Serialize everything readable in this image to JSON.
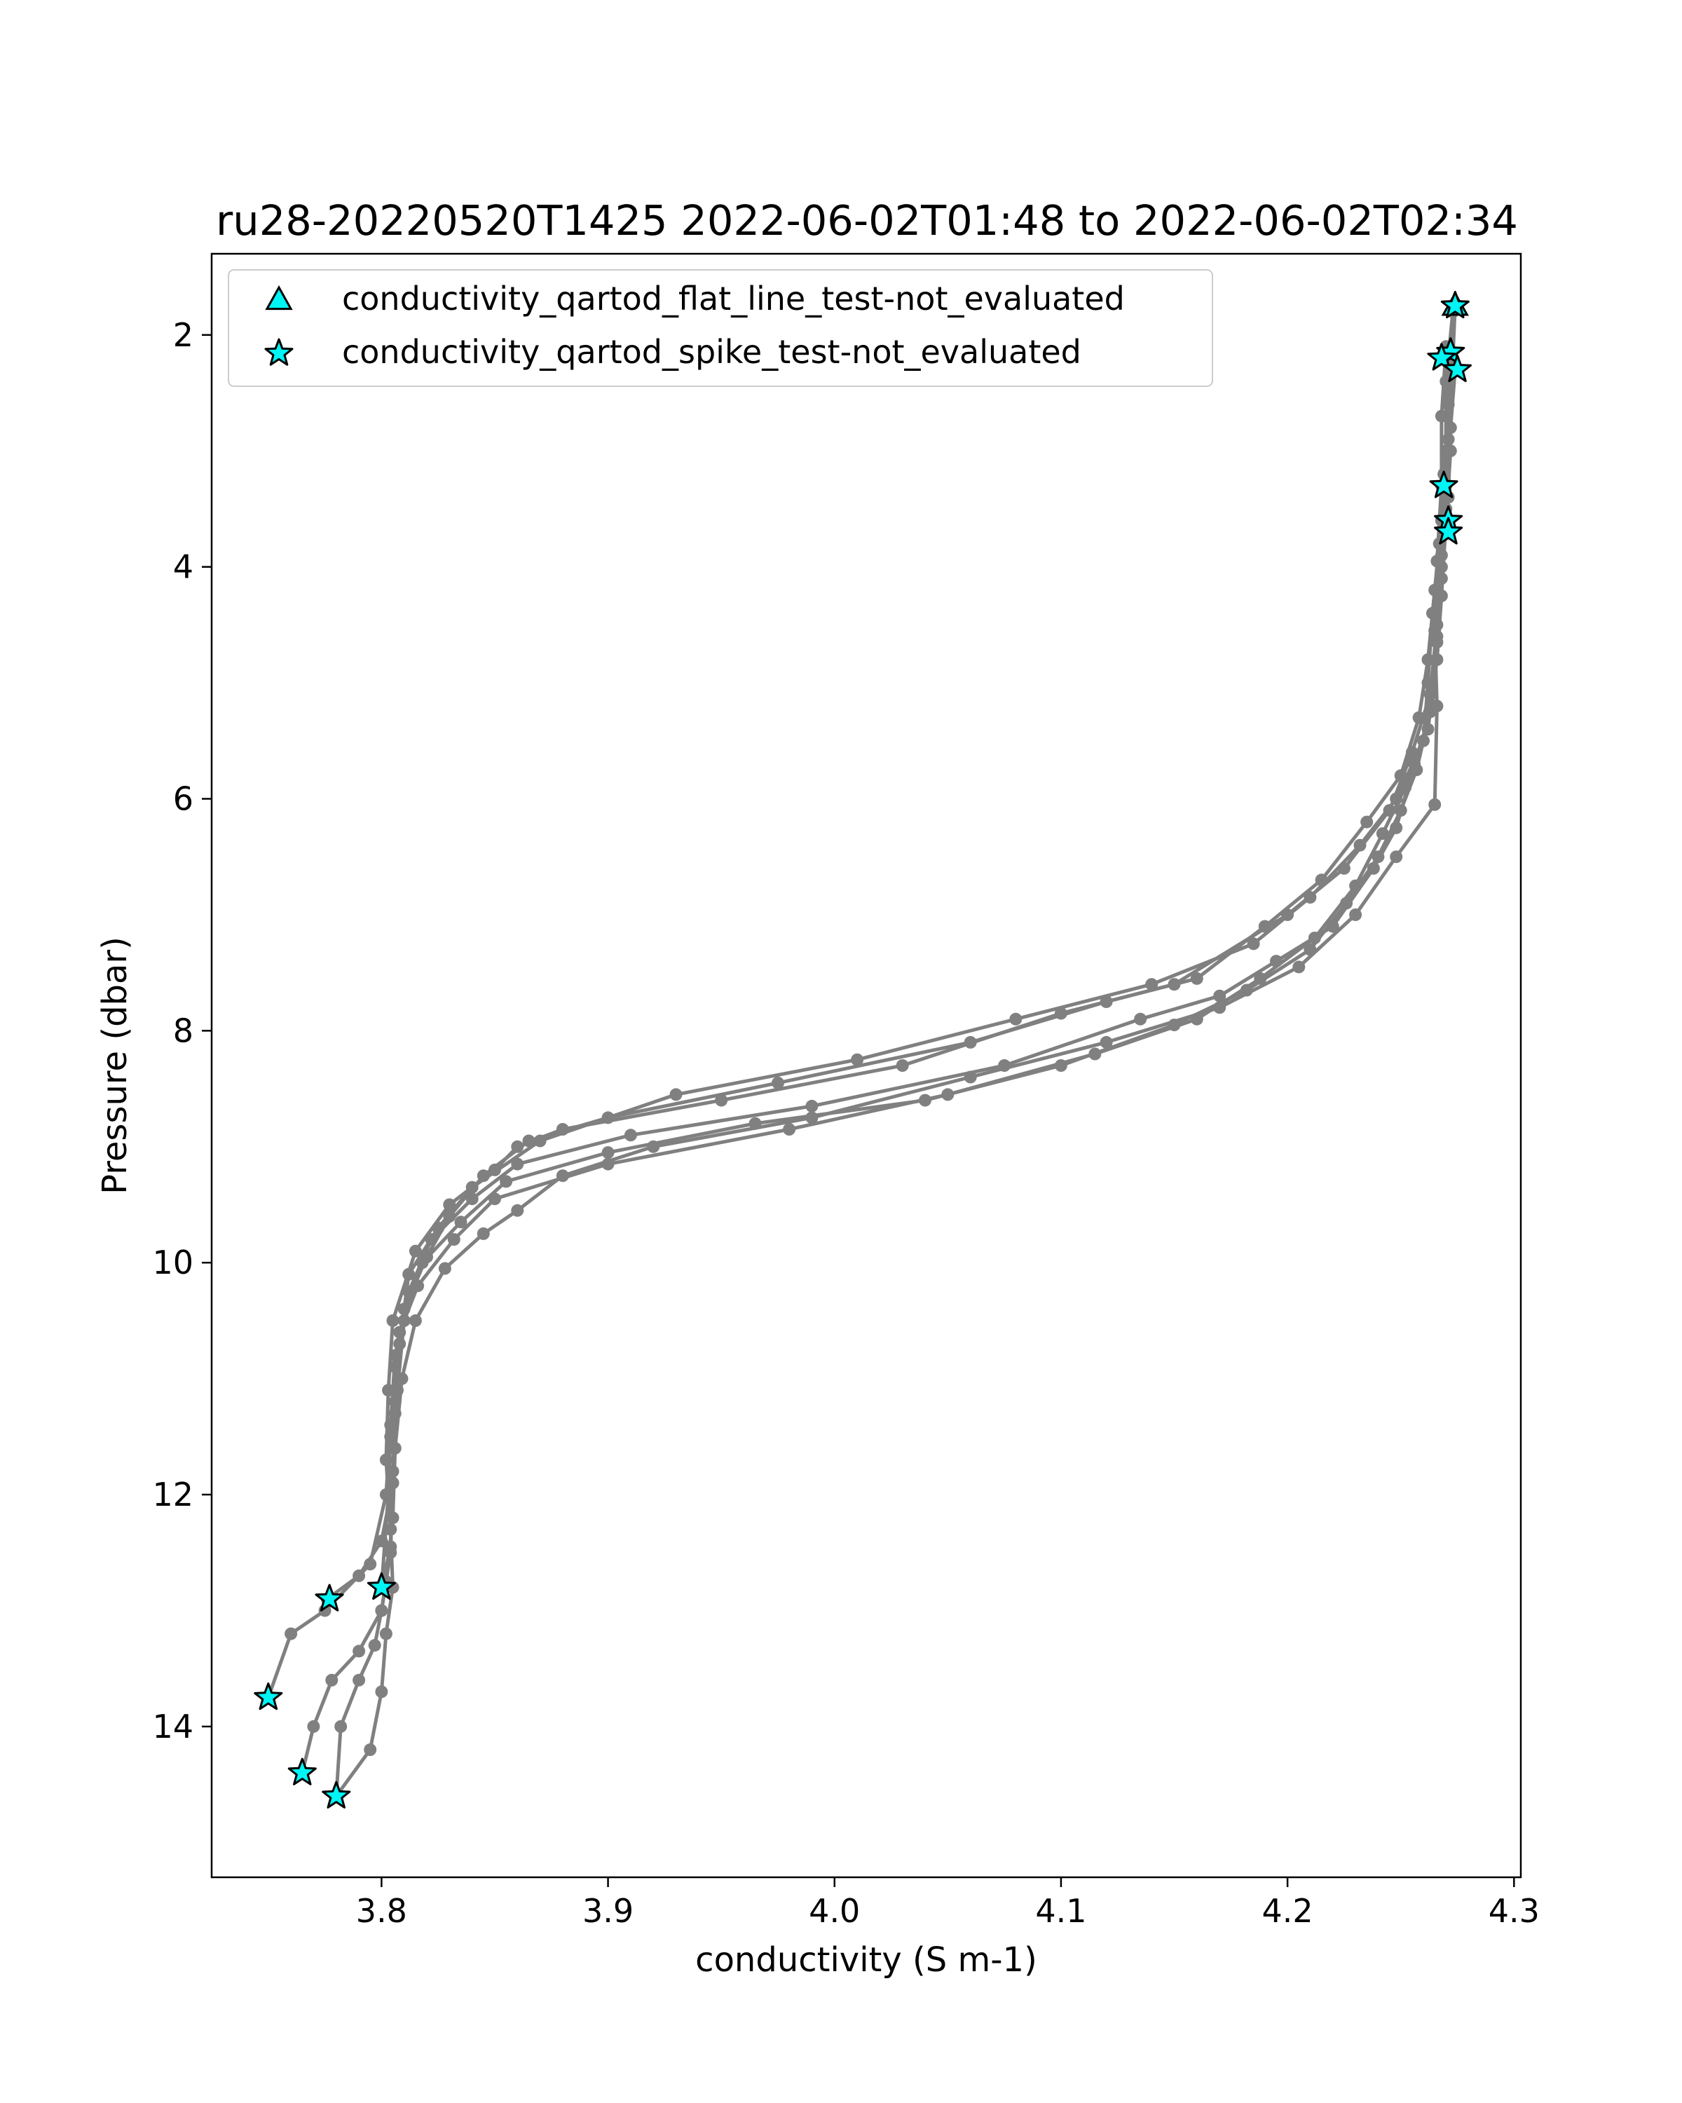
{
  "chart_data": {
    "type": "line",
    "title": "ru28-20220520T1425 2022-06-02T01:48 to 2022-06-02T02:34",
    "xlabel": "conductivity (S m-1)",
    "ylabel": "Pressure (dbar)",
    "xlim": [
      3.725,
      4.303
    ],
    "ylim": [
      15.3,
      1.3
    ],
    "y_inverted": true,
    "grid": false,
    "xticks": [
      3.8,
      3.9,
      4.0,
      4.1,
      4.2,
      4.3
    ],
    "xtick_labels": [
      "3.8",
      "3.9",
      "4.0",
      "4.1",
      "4.2",
      "4.3"
    ],
    "yticks": [
      2,
      4,
      6,
      8,
      10,
      12,
      14
    ],
    "ytick_labels": [
      "2",
      "4",
      "6",
      "8",
      "10",
      "12",
      "14"
    ],
    "line_color": "#808080",
    "marker_color": "#00f5f5",
    "marker_edge": "#000000",
    "legend": {
      "placement": "upper-left",
      "entries": [
        {
          "label": "conductivity_qartod_flat_line_test-not_evaluated",
          "marker": "triangle"
        },
        {
          "label": "conductivity_qartod_spike_test-not_evaluated",
          "marker": "star"
        }
      ]
    },
    "series": [
      {
        "points": [
          [
            4.274,
            1.75
          ],
          [
            4.273,
            2.2
          ],
          [
            4.27,
            2.7
          ],
          [
            4.27,
            3.3
          ],
          [
            4.268,
            3.9
          ],
          [
            4.266,
            4.5
          ],
          [
            4.263,
            5.1
          ],
          [
            4.255,
            5.6
          ],
          [
            4.245,
            6.1
          ],
          [
            4.225,
            6.6
          ],
          [
            4.2,
            7.0
          ],
          [
            4.15,
            7.6
          ],
          [
            4.1,
            7.85
          ],
          [
            4.03,
            8.3
          ],
          [
            3.95,
            8.6
          ],
          [
            3.88,
            8.85
          ],
          [
            3.86,
            9.0
          ],
          [
            3.85,
            9.2
          ],
          [
            3.83,
            9.5
          ],
          [
            3.815,
            9.9
          ],
          [
            3.805,
            10.5
          ],
          [
            3.803,
            11.1
          ],
          [
            3.802,
            11.7
          ],
          [
            3.804,
            12.3
          ],
          [
            3.805,
            12.8
          ],
          [
            3.802,
            13.2
          ],
          [
            3.8,
            13.7
          ],
          [
            3.795,
            14.2
          ],
          [
            3.78,
            14.6
          ]
        ]
      },
      {
        "points": [
          [
            4.273,
            1.8
          ],
          [
            4.27,
            2.4
          ],
          [
            4.27,
            3.0
          ],
          [
            4.268,
            3.6
          ],
          [
            4.265,
            4.2
          ],
          [
            4.262,
            4.8
          ],
          [
            4.258,
            5.3
          ],
          [
            4.25,
            5.8
          ],
          [
            4.235,
            6.2
          ],
          [
            4.215,
            6.7
          ],
          [
            4.19,
            7.1
          ],
          [
            4.16,
            7.55
          ],
          [
            4.12,
            7.75
          ],
          [
            4.06,
            8.1
          ],
          [
            3.975,
            8.45
          ],
          [
            3.9,
            8.75
          ],
          [
            3.865,
            8.95
          ],
          [
            3.845,
            9.25
          ],
          [
            3.83,
            9.6
          ],
          [
            3.82,
            9.95
          ],
          [
            3.81,
            10.4
          ],
          [
            3.806,
            10.9
          ],
          [
            3.804,
            11.5
          ],
          [
            3.803,
            12.0
          ],
          [
            3.8,
            12.8
          ]
        ]
      },
      {
        "points": [
          [
            4.272,
            2.15
          ],
          [
            4.271,
            2.6
          ],
          [
            4.269,
            3.2
          ],
          [
            4.267,
            3.8
          ],
          [
            4.264,
            4.4
          ],
          [
            4.262,
            5.0
          ],
          [
            4.26,
            5.5
          ],
          [
            4.248,
            6.0
          ],
          [
            4.232,
            6.4
          ],
          [
            4.21,
            6.85
          ],
          [
            4.185,
            7.25
          ],
          [
            4.14,
            7.6
          ],
          [
            4.08,
            7.9
          ],
          [
            4.01,
            8.25
          ],
          [
            3.93,
            8.55
          ],
          [
            3.87,
            8.95
          ],
          [
            3.84,
            9.35
          ],
          [
            3.825,
            9.7
          ],
          [
            3.812,
            10.1
          ],
          [
            3.808,
            10.7
          ],
          [
            3.806,
            11.3
          ],
          [
            3.805,
            11.9
          ],
          [
            3.8,
            12.4
          ],
          [
            3.79,
            12.7
          ],
          [
            3.776,
            12.9
          ]
        ]
      },
      {
        "points": [
          [
            4.274,
            2.3
          ],
          [
            4.272,
            2.8
          ],
          [
            4.271,
            3.4
          ],
          [
            4.268,
            4.0
          ],
          [
            4.266,
            4.6
          ],
          [
            4.264,
            5.2
          ],
          [
            4.256,
            5.7
          ],
          [
            4.248,
            6.25
          ],
          [
            4.238,
            6.6
          ],
          [
            4.22,
            7.1
          ],
          [
            4.195,
            7.4
          ],
          [
            4.17,
            7.7
          ],
          [
            4.135,
            7.9
          ],
          [
            4.075,
            8.3
          ],
          [
            3.99,
            8.65
          ],
          [
            3.91,
            8.9
          ],
          [
            3.86,
            9.15
          ],
          [
            3.84,
            9.45
          ],
          [
            3.822,
            9.8
          ],
          [
            3.812,
            10.25
          ],
          [
            3.806,
            10.8
          ],
          [
            3.804,
            11.4
          ],
          [
            3.802,
            12.0
          ],
          [
            3.795,
            12.6
          ],
          [
            3.775,
            13.0
          ],
          [
            3.76,
            13.2
          ],
          [
            3.75,
            13.75
          ]
        ]
      },
      {
        "points": [
          [
            4.272,
            2.2
          ],
          [
            4.271,
            2.9
          ],
          [
            4.27,
            3.5
          ],
          [
            4.268,
            4.1
          ],
          [
            4.266,
            4.65
          ],
          [
            4.263,
            5.25
          ],
          [
            4.257,
            5.75
          ],
          [
            4.25,
            6.1
          ],
          [
            4.24,
            6.5
          ],
          [
            4.226,
            6.9
          ],
          [
            4.21,
            7.3
          ],
          [
            4.182,
            7.65
          ],
          [
            4.15,
            7.95
          ],
          [
            4.1,
            8.3
          ],
          [
            4.04,
            8.6
          ],
          [
            3.965,
            8.8
          ],
          [
            3.9,
            9.05
          ],
          [
            3.855,
            9.3
          ],
          [
            3.835,
            9.65
          ],
          [
            3.818,
            10.0
          ],
          [
            3.81,
            10.5
          ],
          [
            3.807,
            11.1
          ],
          [
            3.805,
            11.8
          ],
          [
            3.804,
            12.5
          ],
          [
            3.8,
            13.0
          ],
          [
            3.79,
            13.35
          ],
          [
            3.778,
            13.6
          ],
          [
            3.77,
            14.0
          ],
          [
            3.765,
            14.4
          ]
        ]
      },
      {
        "points": [
          [
            4.27,
            2.1
          ],
          [
            4.268,
            2.7
          ],
          [
            4.268,
            3.3
          ],
          [
            4.266,
            3.95
          ],
          [
            4.265,
            4.55
          ],
          [
            4.266,
            5.2
          ],
          [
            4.265,
            6.05
          ],
          [
            4.248,
            6.5
          ],
          [
            4.23,
            7.0
          ],
          [
            4.205,
            7.45
          ],
          [
            4.17,
            7.8
          ],
          [
            4.12,
            8.1
          ],
          [
            4.06,
            8.4
          ],
          [
            3.99,
            8.75
          ],
          [
            3.92,
            9.0
          ],
          [
            3.88,
            9.25
          ],
          [
            3.86,
            9.55
          ],
          [
            3.845,
            9.75
          ],
          [
            3.828,
            10.05
          ],
          [
            3.815,
            10.5
          ],
          [
            3.809,
            11.0
          ],
          [
            3.806,
            11.6
          ],
          [
            3.805,
            12.2
          ],
          [
            3.802,
            12.75
          ],
          [
            3.8,
            13.0
          ],
          [
            3.797,
            13.3
          ],
          [
            3.79,
            13.6
          ],
          [
            3.782,
            14.0
          ],
          [
            3.78,
            14.6
          ]
        ]
      },
      {
        "points": [
          [
            4.273,
            1.8
          ],
          [
            4.272,
            2.35
          ],
          [
            4.272,
            3.0
          ],
          [
            4.27,
            3.6
          ],
          [
            4.268,
            4.25
          ],
          [
            4.266,
            4.8
          ],
          [
            4.262,
            5.4
          ],
          [
            4.252,
            5.9
          ],
          [
            4.242,
            6.3
          ],
          [
            4.23,
            6.75
          ],
          [
            4.212,
            7.2
          ],
          [
            4.188,
            7.55
          ],
          [
            4.16,
            7.9
          ],
          [
            4.115,
            8.2
          ],
          [
            4.05,
            8.55
          ],
          [
            3.98,
            8.85
          ],
          [
            3.9,
            9.15
          ],
          [
            3.85,
            9.45
          ],
          [
            3.832,
            9.8
          ],
          [
            3.816,
            10.2
          ],
          [
            3.808,
            10.6
          ],
          [
            3.806,
            11.2
          ],
          [
            3.805,
            11.9
          ],
          [
            3.804,
            12.45
          ],
          [
            3.8,
            12.8
          ]
        ]
      }
    ],
    "flat_line_markers": [
      [
        4.274,
        1.75
      ]
    ],
    "spike_markers": [
      [
        4.274,
        1.75
      ],
      [
        4.272,
        2.15
      ],
      [
        4.268,
        2.2
      ],
      [
        4.275,
        2.3
      ],
      [
        4.269,
        3.3
      ],
      [
        4.271,
        3.6
      ],
      [
        4.271,
        3.7
      ],
      [
        3.777,
        12.9
      ],
      [
        3.8,
        12.8
      ],
      [
        3.75,
        13.75
      ],
      [
        3.765,
        14.4
      ],
      [
        3.78,
        14.6
      ]
    ]
  }
}
